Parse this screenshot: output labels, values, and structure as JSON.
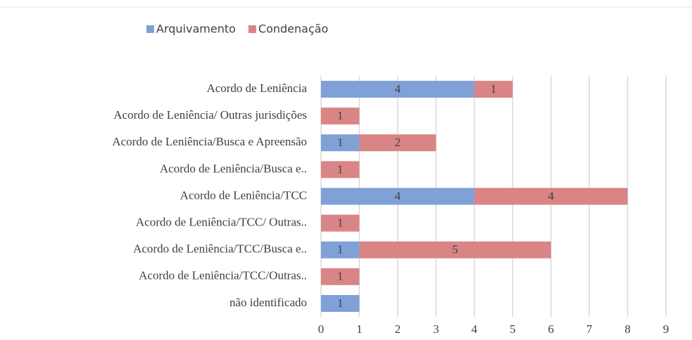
{
  "chart_data": {
    "type": "stacked-barh",
    "categories": [
      "Acordo de Leniência",
      "Acordo de Leniência/ Outras jurisdições",
      "Acordo de Leniência/Busca e Apreensão",
      "Acordo de Leniência/Busca e..",
      "Acordo de Leniência/TCC",
      "Acordo de Leniência/TCC/ Outras..",
      "Acordo de Leniência/TCC/Busca e..",
      "Acordo de Leniência/TCC/Outras..",
      "não identificado"
    ],
    "series": [
      {
        "name": "Arquivamento",
        "color": "#7fa1d6",
        "values": [
          4,
          null,
          1,
          null,
          4,
          null,
          1,
          null,
          1
        ]
      },
      {
        "name": "Condenação",
        "color": "#d98585",
        "values": [
          1,
          1,
          2,
          1,
          4,
          1,
          5,
          1,
          null
        ]
      }
    ],
    "xlim": [
      0,
      9
    ],
    "xticks": [
      0,
      1,
      2,
      3,
      4,
      5,
      6,
      7,
      8,
      9
    ],
    "grid": true,
    "legend": "top"
  }
}
